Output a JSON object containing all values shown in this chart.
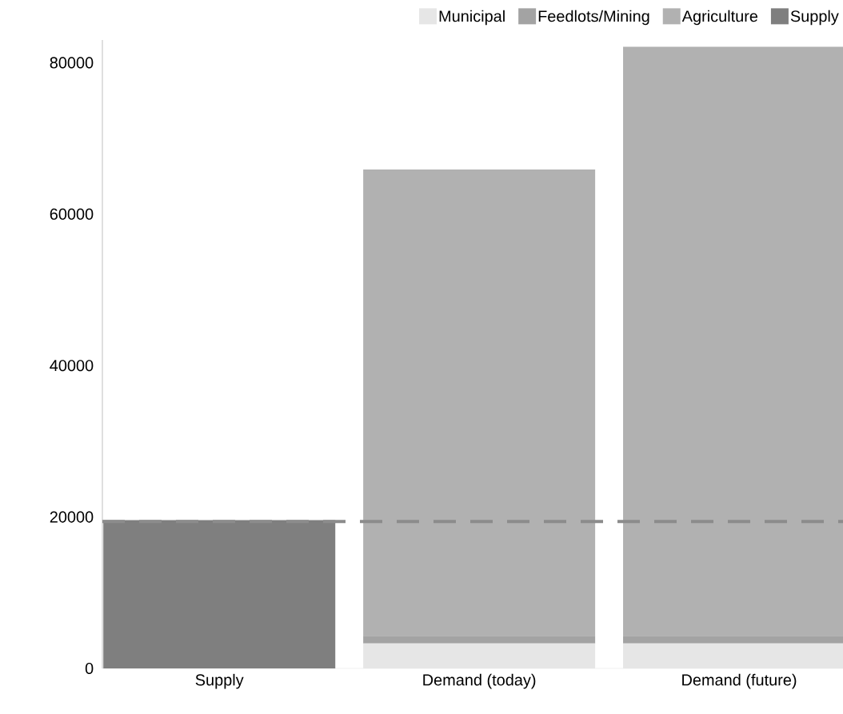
{
  "chart_data": {
    "type": "bar",
    "stacked": true,
    "categories": [
      "Supply",
      "Demand (today)",
      "Demand (future)"
    ],
    "series": [
      {
        "name": "Municipal",
        "color": "#e6e6e6",
        "values": [
          null,
          3300,
          3300
        ]
      },
      {
        "name": "Feedlots/Mining",
        "color": "#a3a3a3",
        "values": [
          null,
          1000,
          1000
        ]
      },
      {
        "name": "Agriculture",
        "color": "#b1b1b1",
        "values": [
          null,
          61600,
          77800
        ]
      },
      {
        "name": "Supply",
        "color": "#7f7f7f",
        "values": [
          19600,
          null,
          null
        ]
      }
    ],
    "ylim": [
      0,
      83000
    ],
    "yticks": [
      0,
      20000,
      40000,
      60000,
      80000
    ],
    "ref_lines": [
      {
        "axis": "y",
        "value": 19400,
        "color": "#8c8c8c",
        "line_style": "dashed"
      }
    ],
    "legend": "top right",
    "grid": false
  }
}
